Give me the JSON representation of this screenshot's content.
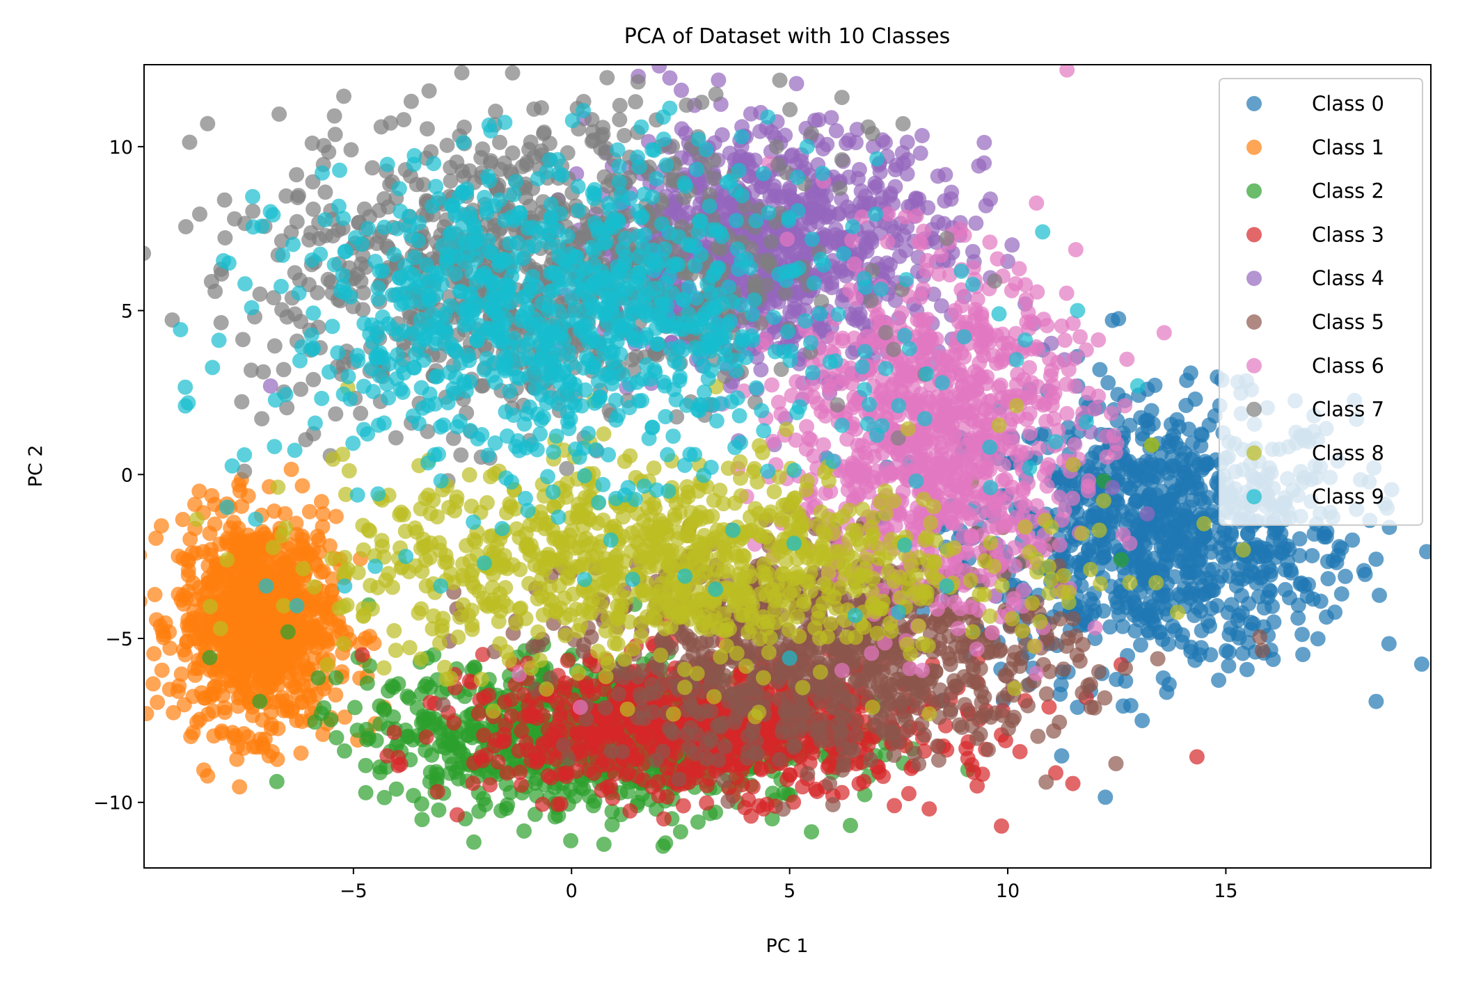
{
  "chart_data": {
    "type": "scatter",
    "title": "PCA of Dataset with 10 Classes",
    "xlabel": "PC 1",
    "ylabel": "PC 2",
    "xlim": [
      -9.8,
      19.7
    ],
    "ylim": [
      -12,
      12.5
    ],
    "xticks": [
      -5,
      0,
      5,
      10,
      15
    ],
    "yticks": [
      -10,
      -5,
      0,
      5,
      10
    ],
    "xtick_labels": [
      "−5",
      "0",
      "5",
      "10",
      "15"
    ],
    "ytick_labels": [
      "−10",
      "−5",
      "0",
      "5",
      "10"
    ],
    "grid": false,
    "legend_position": "top-right",
    "marker_alpha": 0.7,
    "series": [
      {
        "name": "Class 0",
        "color": "#1f77b4",
        "cluster": {
          "center": [
            13.5,
            -1.8
          ],
          "spread": [
            2.2,
            2.0
          ]
        },
        "points": [
          [
            10.8,
            3.8
          ],
          [
            11.6,
            3.6
          ],
          [
            12.4,
            4.7
          ],
          [
            12.3,
            2.8
          ],
          [
            14.3,
            2.3
          ],
          [
            13.2,
            2.6
          ],
          [
            17.3,
            1.4
          ],
          [
            16.9,
            1.0
          ],
          [
            18.3,
            -1.4
          ],
          [
            17.6,
            -2.2
          ],
          [
            17.5,
            -4.2
          ],
          [
            16.1,
            -4.5
          ],
          [
            15.3,
            -4.3
          ],
          [
            14.2,
            -5.4
          ],
          [
            13.7,
            -6.4
          ],
          [
            12.7,
            -6.3
          ],
          [
            11.9,
            -6.6
          ],
          [
            11.6,
            -7.1
          ],
          [
            11.2,
            -6.7
          ],
          [
            10.5,
            -6.4
          ],
          [
            9.9,
            -6.9
          ],
          [
            14.4,
            -5.5
          ],
          [
            16.8,
            -3.4
          ],
          [
            17.9,
            -2.0
          ],
          [
            12.0,
            -5.0
          ],
          [
            15.0,
            0.5
          ],
          [
            13.8,
            1.2
          ],
          [
            11.8,
            2.2
          ],
          [
            10.5,
            2.6
          ],
          [
            16.3,
            -1.0
          ],
          [
            14.9,
            -3.1
          ],
          [
            12.9,
            -3.9
          ],
          [
            13.0,
            -1.5
          ],
          [
            14.0,
            -2.0
          ],
          [
            12.5,
            -0.8
          ],
          [
            15.5,
            -1.8
          ],
          [
            11.0,
            -3.0
          ],
          [
            11.5,
            -1.0
          ],
          [
            16.5,
            -3.0
          ],
          [
            13.5,
            -4.8
          ],
          [
            12.2,
            -2.5
          ],
          [
            14.6,
            -0.7
          ],
          [
            13.3,
            0.3
          ],
          [
            15.8,
            -2.5
          ],
          [
            11.8,
            -4.2
          ],
          [
            14.8,
            -4.0
          ],
          [
            12.8,
            1.5
          ],
          [
            16.0,
            0.2
          ],
          [
            17.0,
            -3.8
          ]
        ]
      },
      {
        "name": "Class 1",
        "color": "#ff7f0e",
        "cluster": {
          "center": [
            -7.2,
            -4.5
          ],
          "spread": [
            0.9,
            1.6
          ]
        },
        "points": [
          [
            -8.7,
            -2.4
          ],
          [
            -8.4,
            -3.9
          ],
          [
            -8.1,
            -5.0
          ],
          [
            -7.9,
            -0.9
          ],
          [
            -7.6,
            -0.5
          ],
          [
            -7.0,
            -6.3
          ],
          [
            -6.3,
            -7.5
          ],
          [
            -5.6,
            -7.6
          ],
          [
            -4.9,
            -8.1
          ],
          [
            -4.5,
            -7.6
          ],
          [
            -4.3,
            -7.1
          ],
          [
            -7.7,
            -2.0
          ],
          [
            -8.2,
            -3.2
          ],
          [
            -6.6,
            -7.2
          ],
          [
            -5.2,
            -7.4
          ],
          [
            -7.3,
            -5.8
          ],
          [
            -6.0,
            -6.8
          ]
        ]
      },
      {
        "name": "Class 2",
        "color": "#2ca02c",
        "cluster": {
          "center": [
            0.5,
            -7.9
          ],
          "spread": [
            2.6,
            1.1
          ]
        },
        "points": [
          [
            -3.7,
            -8.7
          ],
          [
            -2.8,
            -8.6
          ],
          [
            -1.4,
            -9.7
          ],
          [
            -0.8,
            -9.8
          ],
          [
            0.9,
            -9.7
          ],
          [
            1.5,
            -10.1
          ],
          [
            2.3,
            -10.5
          ],
          [
            2.5,
            -10.9
          ],
          [
            2.9,
            -10.6
          ],
          [
            3.3,
            -10.3
          ],
          [
            4.6,
            -10.5
          ],
          [
            5.5,
            -10.9
          ],
          [
            -0.3,
            -10.4
          ],
          [
            0.5,
            -10.1
          ],
          [
            3.8,
            -10.0
          ],
          [
            12.2,
            -0.2
          ],
          [
            13.3,
            0.9
          ],
          [
            12.6,
            -2.6
          ],
          [
            -4.2,
            -6.6
          ],
          [
            -5.4,
            -6.2
          ],
          [
            -6.5,
            -4.8
          ]
        ]
      },
      {
        "name": "Class 3",
        "color": "#d62728",
        "cluster": {
          "center": [
            3.2,
            -7.7
          ],
          "spread": [
            2.6,
            1.0
          ]
        },
        "points": [
          [
            7.4,
            -10.1
          ],
          [
            8.2,
            -10.2
          ],
          [
            11.1,
            -9.1
          ],
          [
            9.3,
            -9.5
          ],
          [
            10.4,
            -6.9
          ],
          [
            9.5,
            -7.2
          ],
          [
            11.8,
            -6.8
          ],
          [
            12.6,
            -5.8
          ],
          [
            8.6,
            -8.4
          ],
          [
            7.0,
            -8.9
          ],
          [
            6.2,
            -9.7
          ],
          [
            4.4,
            -10.2
          ],
          [
            2.0,
            -9.8
          ],
          [
            -0.1,
            -9.1
          ],
          [
            -1.0,
            -8.4
          ],
          [
            -4.8,
            -5.5
          ],
          [
            -2.0,
            -6.8
          ],
          [
            5.6,
            -9.6
          ]
        ]
      },
      {
        "name": "Class 4",
        "color": "#9467bd",
        "cluster": {
          "center": [
            4.5,
            7.0
          ],
          "spread": [
            2.0,
            1.8
          ]
        },
        "points": [
          [
            4.0,
            10.3
          ],
          [
            3.9,
            10.0
          ],
          [
            6.3,
            10.1
          ],
          [
            6.6,
            9.3
          ],
          [
            7.7,
            9.6
          ],
          [
            8.0,
            9.8
          ],
          [
            8.4,
            9.1
          ],
          [
            8.7,
            8.4
          ],
          [
            8.4,
            7.7
          ],
          [
            9.6,
            8.4
          ],
          [
            9.5,
            8.2
          ],
          [
            10.1,
            7.0
          ],
          [
            10.0,
            6.5
          ],
          [
            9.2,
            6.8
          ],
          [
            9.6,
            6.0
          ],
          [
            10.4,
            5.2
          ],
          [
            11.0,
            4.0
          ],
          [
            11.3,
            3.5
          ],
          [
            7.8,
            8.2
          ],
          [
            7.3,
            8.5
          ],
          [
            8.9,
            7.3
          ],
          [
            -6.9,
            2.7
          ],
          [
            11.9,
            1.3
          ],
          [
            13.2,
            -1.2
          ],
          [
            12.4,
            -0.4
          ],
          [
            8.3,
            5.5
          ],
          [
            10.6,
            4.6
          ]
        ]
      },
      {
        "name": "Class 5",
        "color": "#8c564b",
        "cluster": {
          "center": [
            5.8,
            -5.5
          ],
          "spread": [
            2.8,
            1.6
          ]
        },
        "points": [
          [
            9.4,
            -7.4
          ],
          [
            10.0,
            -6.7
          ],
          [
            10.6,
            -6.3
          ],
          [
            10.1,
            -7.5
          ],
          [
            8.5,
            -6.9
          ],
          [
            7.2,
            -7.9
          ],
          [
            6.2,
            -7.4
          ],
          [
            5.0,
            -7.8
          ],
          [
            3.8,
            -7.0
          ],
          [
            9.2,
            -5.8
          ],
          [
            10.9,
            -5.0
          ],
          [
            11.5,
            -4.4
          ],
          [
            7.9,
            -6.3
          ],
          [
            6.8,
            -6.9
          ],
          [
            4.2,
            -6.2
          ]
        ]
      },
      {
        "name": "Class 6",
        "color": "#e377c2",
        "cluster": {
          "center": [
            8.3,
            1.2
          ],
          "spread": [
            1.6,
            2.6
          ]
        },
        "points": [
          [
            11.8,
            3.8
          ],
          [
            11.4,
            3.2
          ],
          [
            10.7,
            2.2
          ],
          [
            12.0,
            2.0
          ],
          [
            9.9,
            4.0
          ],
          [
            9.4,
            4.9
          ],
          [
            8.0,
            5.4
          ],
          [
            7.9,
            2.2
          ],
          [
            8.6,
            -3.0
          ],
          [
            9.7,
            -3.7
          ],
          [
            10.6,
            -2.7
          ],
          [
            0.2,
            -7.1
          ],
          [
            -1.2,
            -6.1
          ],
          [
            12.8,
            -2.1
          ],
          [
            11.3,
            -1.1
          ],
          [
            8.0,
            -0.5
          ],
          [
            7.2,
            1.0
          ]
        ]
      },
      {
        "name": "Class 7",
        "color": "#7f7f7f",
        "cluster": {
          "center": [
            -1.0,
            6.3
          ],
          "spread": [
            3.0,
            2.4
          ]
        },
        "points": [
          [
            6.2,
            11.5
          ],
          [
            6.8,
            10.6
          ],
          [
            6.9,
            10.4
          ],
          [
            7.6,
            10.7
          ],
          [
            5.5,
            10.4
          ],
          [
            4.7,
            10.0
          ],
          [
            2.9,
            10.3
          ],
          [
            0.5,
            10.2
          ],
          [
            -0.5,
            10.1
          ],
          [
            -4.2,
            6.9
          ],
          [
            -5.3,
            5.3
          ],
          [
            -6.0,
            4.4
          ],
          [
            -6.6,
            3.2
          ],
          [
            -7.1,
            1.7
          ],
          [
            -7.5,
            0.1
          ],
          [
            8.6,
            7.2
          ],
          [
            9.7,
            5.9
          ],
          [
            6.2,
            9.6
          ]
        ]
      },
      {
        "name": "Class 8",
        "color": "#bcbd22",
        "cluster": {
          "center": [
            2.0,
            -2.7
          ],
          "spread": [
            3.6,
            1.5
          ]
        },
        "points": [
          [
            13.4,
            -3.3
          ],
          [
            12.8,
            -3.3
          ],
          [
            11.9,
            -2.9
          ],
          [
            11.4,
            -3.6
          ],
          [
            11.0,
            -3.2
          ],
          [
            12.1,
            -1.7
          ],
          [
            11.7,
            -1.8
          ],
          [
            10.4,
            -1.6
          ],
          [
            10.2,
            2.1
          ],
          [
            9.8,
            1.5
          ],
          [
            9.2,
            -4.8
          ],
          [
            10.1,
            -4.4
          ],
          [
            11.4,
            -3.9
          ],
          [
            8.2,
            -7.3
          ],
          [
            6.9,
            -7.1
          ],
          [
            5.3,
            -6.5
          ],
          [
            4.4,
            -6.2
          ],
          [
            13.3,
            0.9
          ],
          [
            12.2,
            -0.8
          ],
          [
            11.5,
            0.3
          ],
          [
            14.5,
            -1.5
          ],
          [
            15.4,
            -2.3
          ],
          [
            -7.9,
            -2.6
          ],
          [
            -6.6,
            -4.0
          ],
          [
            -5.6,
            -5.8
          ],
          [
            -4.3,
            -5.9
          ]
        ]
      },
      {
        "name": "Class 9",
        "color": "#17becf",
        "cluster": {
          "center": [
            -0.3,
            4.8
          ],
          "spread": [
            3.1,
            2.3
          ]
        },
        "points": [
          [
            1.6,
            10.6
          ],
          [
            2.1,
            10.9
          ],
          [
            4.5,
            10.9
          ],
          [
            5.4,
            10.0
          ],
          [
            3.9,
            10.3
          ],
          [
            -0.5,
            9.6
          ],
          [
            -2.5,
            8.6
          ],
          [
            -4.0,
            7.5
          ],
          [
            10.8,
            7.4
          ],
          [
            11.6,
            5.0
          ],
          [
            9.8,
            4.9
          ],
          [
            9.2,
            5.8
          ],
          [
            10.4,
            4.1
          ],
          [
            10.2,
            3.5
          ],
          [
            9.0,
            4.2
          ],
          [
            8.5,
            2.8
          ],
          [
            7.5,
            2.1
          ],
          [
            8.1,
            1.7
          ],
          [
            7.0,
            1.2
          ],
          [
            11.8,
            1.6
          ],
          [
            11.1,
            1.0
          ],
          [
            10.5,
            0.2
          ],
          [
            9.6,
            -0.4
          ],
          [
            -7.5,
            0.6
          ],
          [
            -7.9,
            -1.0
          ],
          [
            -7.0,
            -3.4
          ],
          [
            -6.3,
            -4.0
          ],
          [
            -5.2,
            -3.4
          ],
          [
            -4.5,
            -2.8
          ],
          [
            -3.8,
            -2.5
          ],
          [
            -3.0,
            -3.4
          ],
          [
            -2.0,
            -2.7
          ],
          [
            -1.0,
            -1.1
          ],
          [
            0.3,
            -3.2
          ],
          [
            1.4,
            -3.2
          ],
          [
            2.6,
            -3.1
          ],
          [
            3.3,
            -3.5
          ],
          [
            3.7,
            -1.7
          ],
          [
            0.9,
            -2.0
          ],
          [
            -0.3,
            -1.3
          ],
          [
            4.5,
            0.1
          ],
          [
            5.1,
            -2.1
          ],
          [
            5.0,
            -5.6
          ],
          [
            6.5,
            -4.3
          ],
          [
            7.5,
            -4.2
          ],
          [
            8.6,
            -3.4
          ],
          [
            6.0,
            0.4
          ],
          [
            7.9,
            -0.2
          ],
          [
            6.2,
            1.5
          ]
        ]
      }
    ]
  }
}
